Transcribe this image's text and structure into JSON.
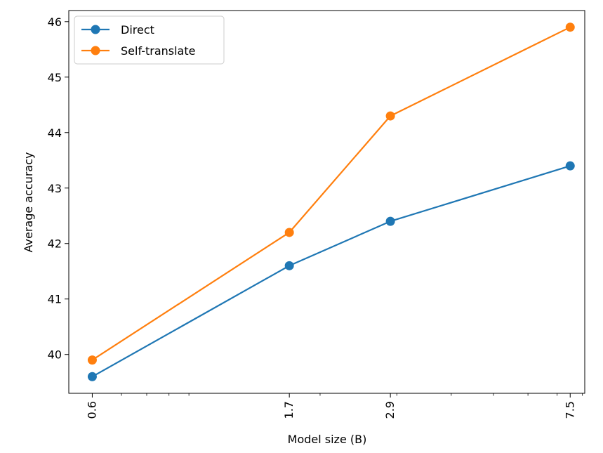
{
  "chart_data": {
    "type": "line",
    "xlabel": "Model size (B)",
    "ylabel": "Average accuracy",
    "x_scale": "log",
    "x": [
      0.6,
      1.7,
      2.9,
      7.5
    ],
    "x_tick_labels": [
      "0.6",
      "1.7",
      "2.9",
      "7.5"
    ],
    "xlim": [
      0.53,
      8.1
    ],
    "ylim": [
      39.3,
      46.2
    ],
    "y_ticks": [
      40,
      41,
      42,
      43,
      44,
      45,
      46
    ],
    "series": [
      {
        "name": "Direct",
        "color": "#1f77b4",
        "values": [
          39.6,
          41.6,
          42.4,
          43.4
        ]
      },
      {
        "name": "Self-translate",
        "color": "#ff7f0e",
        "values": [
          39.9,
          42.2,
          44.3,
          45.9
        ]
      }
    ],
    "legend_position": "upper-left",
    "grid": false
  }
}
